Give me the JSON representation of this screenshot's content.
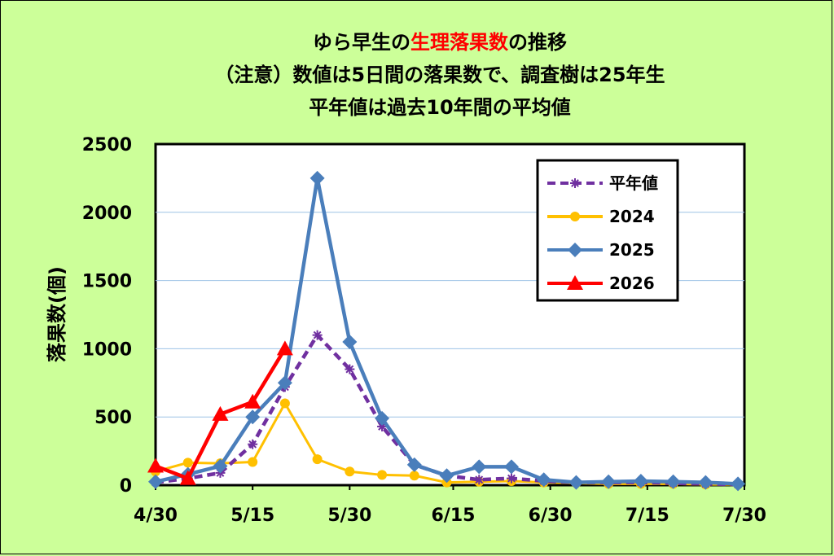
{
  "chart_data": {
    "type": "line",
    "title_lines": [
      [
        {
          "text": "ゆら早生の",
          "color": "#000000"
        },
        {
          "text": "生理落果数",
          "color": "#ff0000"
        },
        {
          "text": "の推移",
          "color": "#000000"
        }
      ],
      [
        {
          "text": "（注意）数値は5日間の落果数で、調査樹は25年生",
          "color": "#000000"
        }
      ],
      [
        {
          "text": "平年値は過去10年間の平均値",
          "color": "#000000"
        }
      ]
    ],
    "ylabel": "落果数(個)",
    "xlabel": "",
    "ylim": [
      0,
      2500
    ],
    "yticks": [
      0,
      500,
      1000,
      1500,
      2000,
      2500
    ],
    "x_range_days": [
      0,
      91
    ],
    "xticks": [
      {
        "label": "4/30",
        "day": 0
      },
      {
        "label": "5/15",
        "day": 15
      },
      {
        "label": "5/30",
        "day": 30
      },
      {
        "label": "6/15",
        "day": 46
      },
      {
        "label": "6/30",
        "day": 61
      },
      {
        "label": "7/15",
        "day": 76
      },
      {
        "label": "7/30",
        "day": 91
      }
    ],
    "grid": true,
    "legend_position": "top-right",
    "series": [
      {
        "name": "平年値",
        "color": "#7030a0",
        "style": "dashed",
        "marker": "star",
        "x": [
          0,
          5,
          10,
          15,
          20,
          25,
          30,
          35,
          40,
          45,
          50,
          55,
          60,
          65,
          70,
          75,
          80,
          85,
          90
        ],
        "y": [
          20,
          50,
          90,
          300,
          720,
          1100,
          850,
          430,
          150,
          70,
          40,
          50,
          30,
          20,
          20,
          20,
          15,
          10,
          5
        ]
      },
      {
        "name": "2024",
        "color": "#ffc000",
        "style": "solid",
        "marker": "circle",
        "x": [
          0,
          5,
          10,
          15,
          20,
          25,
          30,
          35,
          40,
          45,
          50,
          55,
          60,
          65,
          70,
          75,
          80,
          85,
          90
        ],
        "y": [
          100,
          165,
          160,
          170,
          600,
          190,
          100,
          75,
          70,
          20,
          25,
          30,
          20,
          15,
          10,
          10,
          10,
          5,
          5
        ]
      },
      {
        "name": "2025",
        "color": "#4a7ebb",
        "style": "solid",
        "marker": "diamond",
        "x": [
          0,
          5,
          10,
          15,
          20,
          25,
          30,
          35,
          40,
          45,
          50,
          55,
          60,
          65,
          70,
          75,
          80,
          85,
          90
        ],
        "y": [
          25,
          80,
          140,
          500,
          750,
          2250,
          1050,
          490,
          150,
          70,
          135,
          135,
          40,
          20,
          25,
          30,
          25,
          20,
          10
        ]
      },
      {
        "name": "2026",
        "color": "#ff0000",
        "style": "solid",
        "marker": "triangle",
        "x": [
          0,
          5,
          10,
          15,
          20
        ],
        "y": [
          140,
          50,
          520,
          610,
          1000
        ]
      }
    ]
  }
}
